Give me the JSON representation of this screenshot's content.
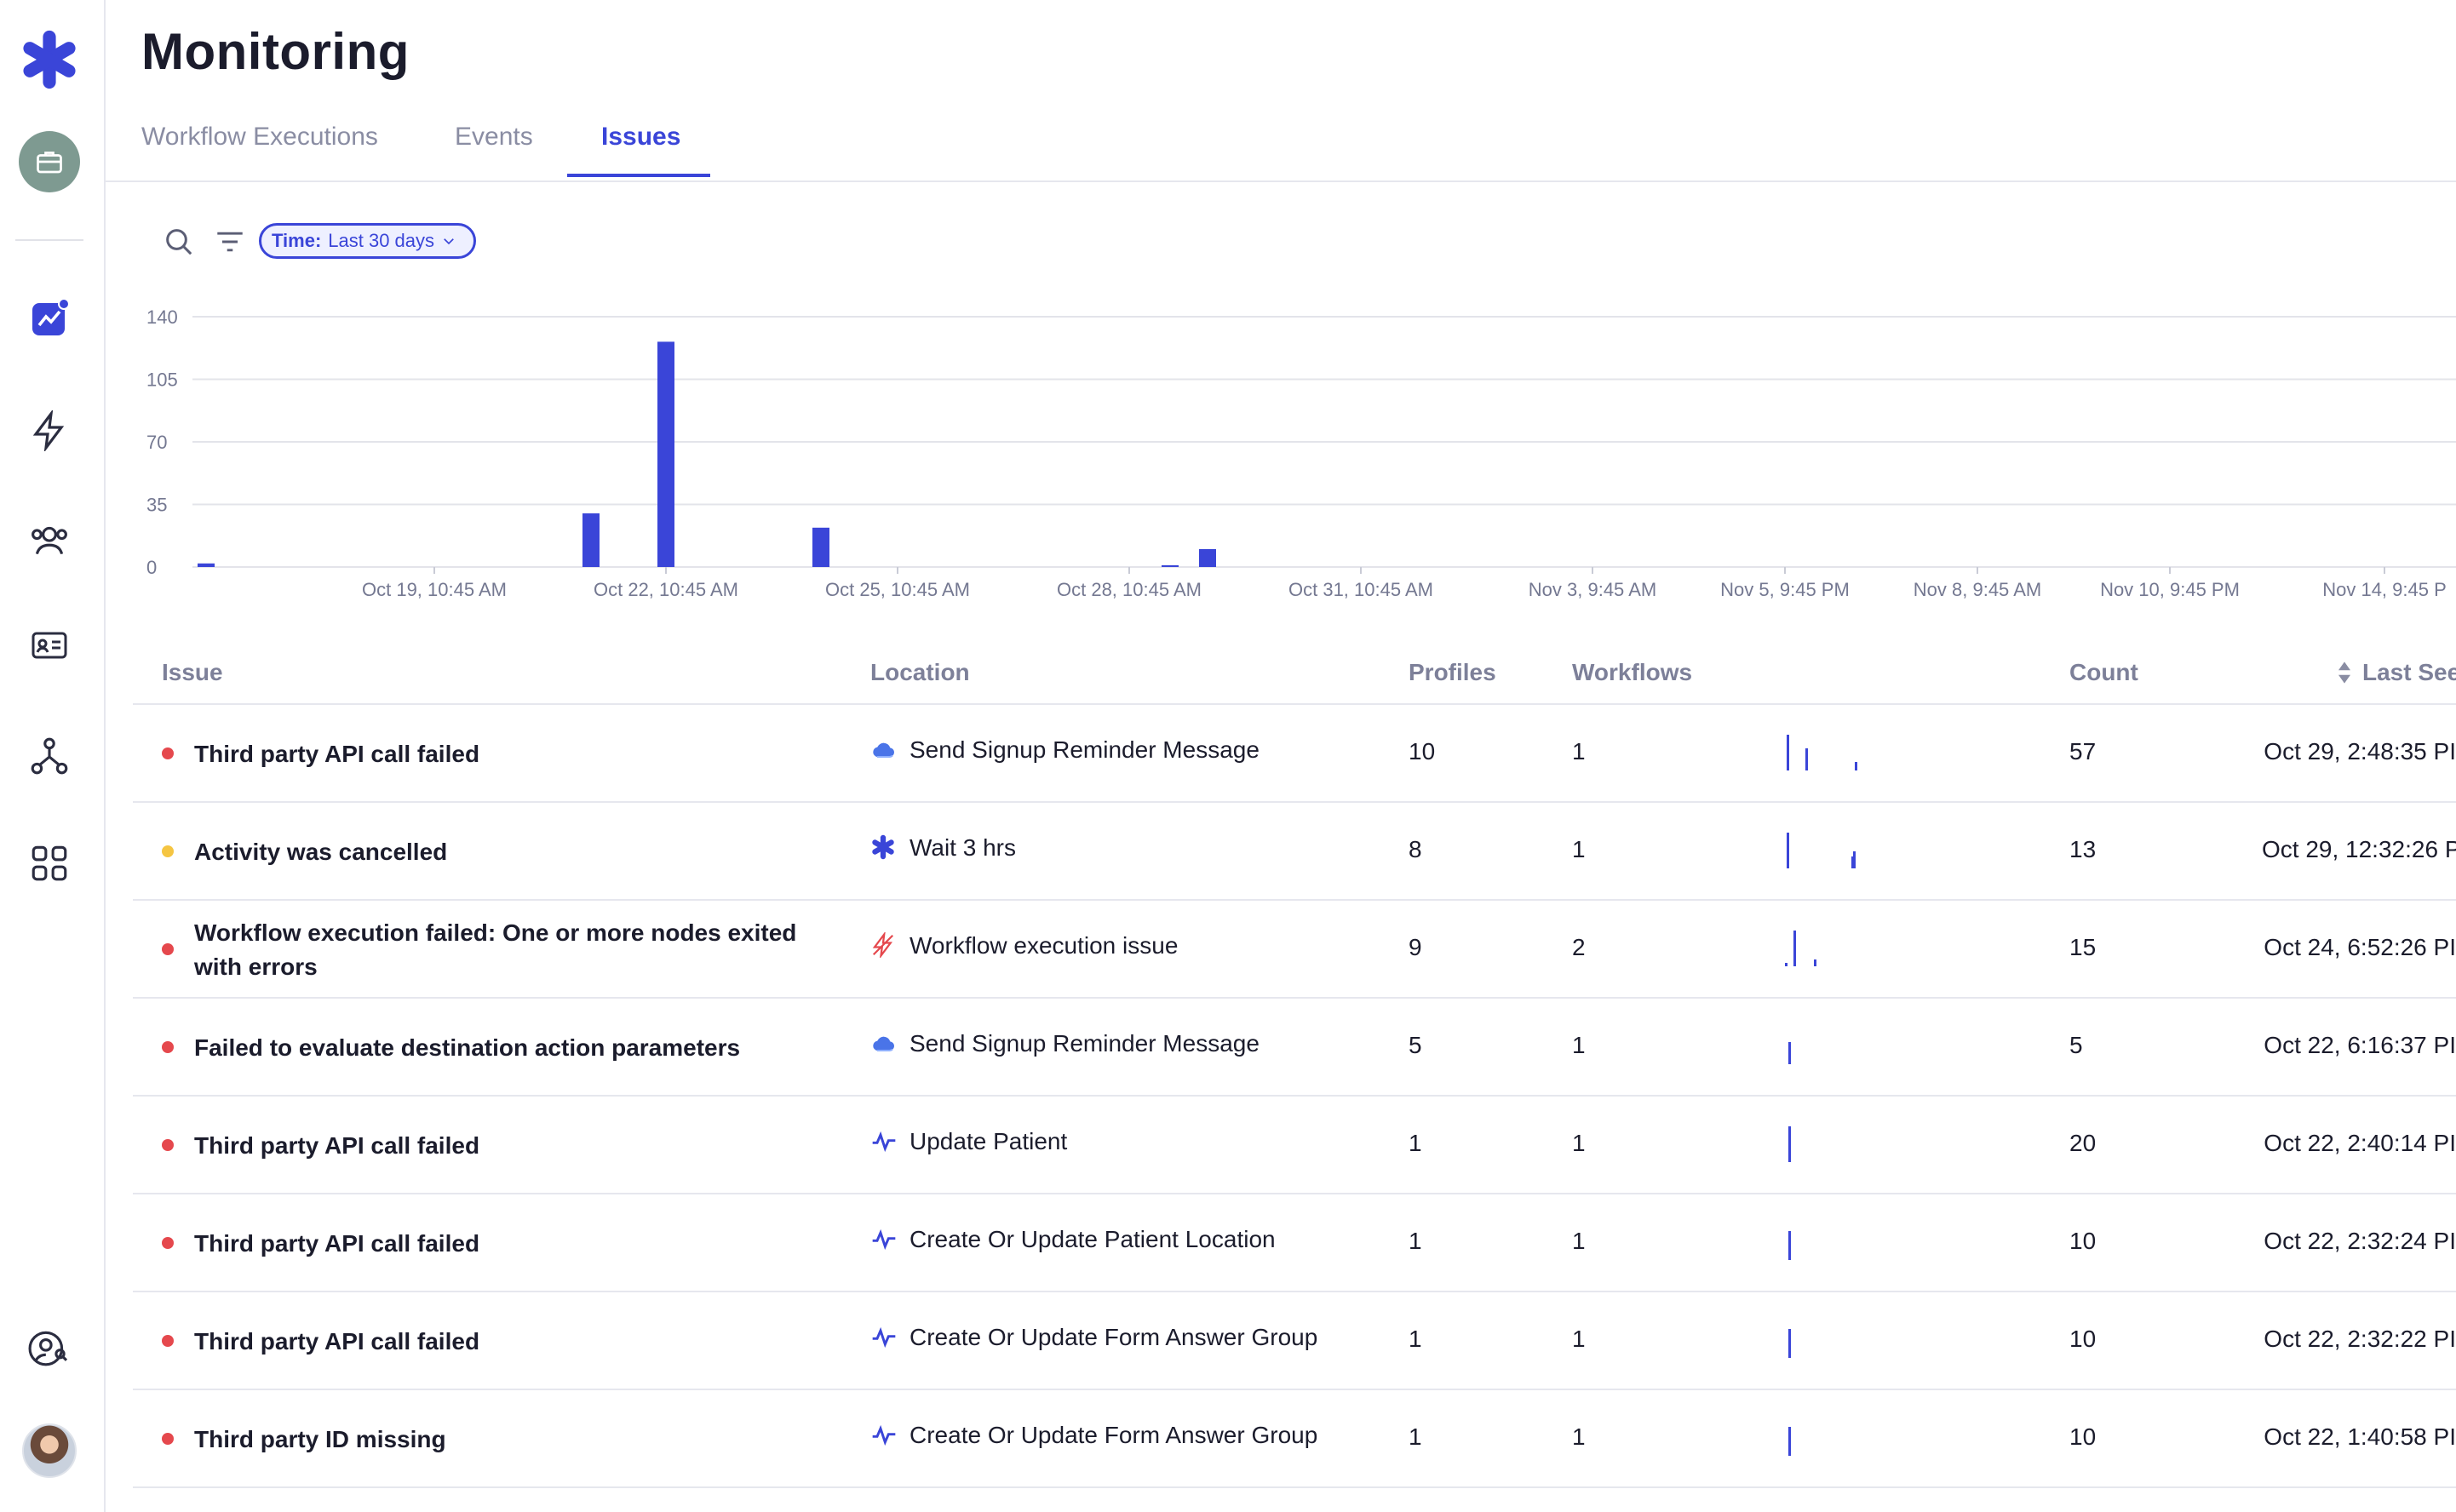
{
  "header": {
    "title": "Monitoring"
  },
  "tabs": [
    {
      "label": "Workflow Executions",
      "active": false
    },
    {
      "label": "Events",
      "active": false
    },
    {
      "label": "Issues",
      "active": true
    }
  ],
  "filters": {
    "time_key": "Time:",
    "time_value": "Last 30 days"
  },
  "sidebar": {
    "items": [
      {
        "icon": "asterisk-logo-icon"
      },
      {
        "icon": "briefcase-icon"
      },
      {
        "icon": "monitoring-chart-icon",
        "active": true
      },
      {
        "icon": "lightning-icon"
      },
      {
        "icon": "users-group-icon"
      },
      {
        "icon": "contact-card-icon"
      },
      {
        "icon": "nodes-graph-icon"
      },
      {
        "icon": "apps-grid-icon"
      },
      {
        "icon": "user-search-icon"
      },
      {
        "icon": "user-avatar"
      }
    ]
  },
  "chart_data": {
    "type": "bar",
    "y_ticks": [
      "0",
      "35",
      "70",
      "105",
      "140"
    ],
    "ylim": [
      0,
      140
    ],
    "x_tick_labels": [
      "Oct 19, 10:45 AM",
      "Oct 22, 10:45 AM",
      "Oct 25, 10:45 AM",
      "Oct 28, 10:45 AM",
      "Oct 31, 10:45 AM",
      "Nov 3, 9:45 AM",
      "Nov 5, 9:45 PM",
      "Nov 8, 9:45 AM",
      "Nov 10, 9:45 PM",
      "Nov 14, 9:45 P"
    ],
    "bars": [
      {
        "x": "Oct 16",
        "value": 2
      },
      {
        "x": "Oct 21",
        "value": 30
      },
      {
        "x": "Oct 22",
        "value": 126
      },
      {
        "x": "Oct 24",
        "value": 22
      },
      {
        "x": "Oct 29",
        "value": 1
      },
      {
        "x": "Oct 29 (late)",
        "value": 10
      }
    ],
    "color": "#3a45d8",
    "grid": true
  },
  "table": {
    "columns": {
      "issue": "Issue",
      "location": "Location",
      "profiles": "Profiles",
      "workflows": "Workflows",
      "count": "Count",
      "last_seen": "Last See"
    },
    "rows": [
      {
        "severity": "#e5484d",
        "issue": "Third party API call failed",
        "location_icon": "cloud-icon",
        "location": "Send Signup Reminder Message",
        "profiles": "10",
        "workflows": "1",
        "count": "57",
        "last_seen": "Oct 29, 2:48:35 PI"
      },
      {
        "severity": "#f5c542",
        "issue": "Activity was cancelled",
        "location_icon": "asterisk-icon",
        "location": "Wait 3 hrs",
        "profiles": "8",
        "workflows": "1",
        "count": "13",
        "last_seen": "Oct 29, 12:32:26 PI"
      },
      {
        "severity": "#e5484d",
        "issue": "Workflow execution failed: One or more nodes exited with errors",
        "location_icon": "broken-lightning-icon",
        "location": "Workflow execution issue",
        "profiles": "9",
        "workflows": "2",
        "count": "15",
        "last_seen": "Oct 24, 6:52:26 PI"
      },
      {
        "severity": "#e5484d",
        "issue": "Failed to evaluate destination action parameters",
        "location_icon": "cloud-icon",
        "location": "Send Signup Reminder Message",
        "profiles": "5",
        "workflows": "1",
        "count": "5",
        "last_seen": "Oct 22, 6:16:37 PI"
      },
      {
        "severity": "#e5484d",
        "issue": "Third party API call failed",
        "location_icon": "pulse-icon",
        "location": "Update Patient",
        "profiles": "1",
        "workflows": "1",
        "count": "20",
        "last_seen": "Oct 22, 2:40:14 PI"
      },
      {
        "severity": "#e5484d",
        "issue": "Third party API call failed",
        "location_icon": "pulse-icon",
        "location": "Create Or Update Patient Location",
        "profiles": "1",
        "workflows": "1",
        "count": "10",
        "last_seen": "Oct 22, 2:32:24 PI"
      },
      {
        "severity": "#e5484d",
        "issue": "Third party API call failed",
        "location_icon": "pulse-icon",
        "location": "Create Or Update Form Answer Group",
        "profiles": "1",
        "workflows": "1",
        "count": "10",
        "last_seen": "Oct 22, 2:32:22 PI"
      },
      {
        "severity": "#e5484d",
        "issue": "Third party ID missing",
        "location_icon": "pulse-icon",
        "location": "Create Or Update Form Answer Group",
        "profiles": "1",
        "workflows": "1",
        "count": "10",
        "last_seen": "Oct 22, 1:40:58 PI"
      }
    ]
  }
}
